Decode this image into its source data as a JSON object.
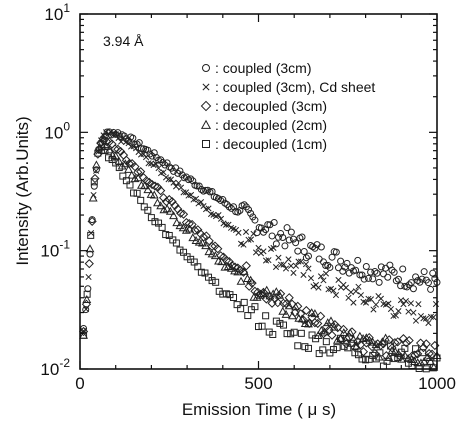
{
  "chart_data": {
    "type": "scatter",
    "title": "",
    "annotation": "3.94 Å",
    "xlabel": "Emission  Time ( μ s)",
    "ylabel": "Intensity (Arb.Units)",
    "xlim": [
      0,
      1000
    ],
    "ylim": [
      0.01,
      10
    ],
    "y_scale": "log",
    "x_ticks": [
      0,
      500,
      1000
    ],
    "x_tick_labels": [
      "0",
      "500",
      "1000"
    ],
    "y_ticks": [
      0.01,
      0.1,
      1,
      10
    ],
    "y_tick_labels": [
      {
        "base": "10",
        "exp": "-2"
      },
      {
        "base": "10",
        "exp": "-1"
      },
      {
        "base": "10",
        "exp": "0"
      },
      {
        "base": "10",
        "exp": "1"
      }
    ],
    "grid": false,
    "legend_position": "top-right",
    "series": [
      {
        "name": ": coupled (3cm)",
        "marker": "circle",
        "decay_ref": "coupled-3cm",
        "points": [
          [
            10,
            0.022
          ],
          [
            20,
            0.04
          ],
          [
            30,
            0.12
          ],
          [
            40,
            0.35
          ],
          [
            50,
            0.65
          ],
          [
            60,
            0.85
          ],
          [
            70,
            0.95
          ],
          [
            80,
            0.99
          ],
          [
            90,
            1.0
          ],
          [
            100,
            0.99
          ],
          [
            125,
            0.93
          ],
          [
            150,
            0.84
          ],
          [
            200,
            0.66
          ],
          [
            250,
            0.52
          ],
          [
            300,
            0.41
          ],
          [
            350,
            0.33
          ],
          [
            400,
            0.26
          ],
          [
            450,
            0.21
          ],
          [
            500,
            0.17
          ],
          [
            550,
            0.14
          ],
          [
            600,
            0.12
          ],
          [
            650,
            0.1
          ],
          [
            700,
            0.088
          ],
          [
            750,
            0.078
          ],
          [
            800,
            0.07
          ],
          [
            850,
            0.065
          ],
          [
            900,
            0.06
          ],
          [
            950,
            0.057
          ],
          [
            1000,
            0.054
          ]
        ]
      },
      {
        "name": ": coupled (3cm), Cd sheet",
        "marker": "cross",
        "decay_ref": "coupled-cd",
        "points": [
          [
            10,
            0.02
          ],
          [
            20,
            0.038
          ],
          [
            30,
            0.12
          ],
          [
            40,
            0.35
          ],
          [
            50,
            0.65
          ],
          [
            60,
            0.86
          ],
          [
            70,
            0.95
          ],
          [
            80,
            0.97
          ],
          [
            100,
            0.93
          ],
          [
            125,
            0.84
          ],
          [
            150,
            0.74
          ],
          [
            200,
            0.55
          ],
          [
            250,
            0.41
          ],
          [
            300,
            0.31
          ],
          [
            350,
            0.23
          ],
          [
            400,
            0.18
          ],
          [
            450,
            0.14
          ],
          [
            500,
            0.11
          ],
          [
            550,
            0.088
          ],
          [
            600,
            0.072
          ],
          [
            650,
            0.06
          ],
          [
            700,
            0.051
          ],
          [
            750,
            0.044
          ],
          [
            800,
            0.039
          ],
          [
            850,
            0.035
          ],
          [
            900,
            0.032
          ],
          [
            950,
            0.03
          ],
          [
            1000,
            0.029
          ]
        ]
      },
      {
        "name": ": decoupled (3cm)",
        "marker": "diamond",
        "decay_ref": "decoupled-3cm",
        "points": [
          [
            10,
            0.02
          ],
          [
            20,
            0.04
          ],
          [
            30,
            0.12
          ],
          [
            40,
            0.36
          ],
          [
            50,
            0.68
          ],
          [
            60,
            0.85
          ],
          [
            70,
            0.88
          ],
          [
            80,
            0.84
          ],
          [
            100,
            0.74
          ],
          [
            125,
            0.63
          ],
          [
            150,
            0.53
          ],
          [
            200,
            0.37
          ],
          [
            250,
            0.26
          ],
          [
            300,
            0.18
          ],
          [
            350,
            0.13
          ],
          [
            400,
            0.092
          ],
          [
            450,
            0.068
          ],
          [
            500,
            0.051
          ],
          [
            550,
            0.04
          ],
          [
            600,
            0.032
          ],
          [
            650,
            0.026
          ],
          [
            700,
            0.022
          ],
          [
            750,
            0.019
          ],
          [
            800,
            0.017
          ],
          [
            850,
            0.016
          ],
          [
            900,
            0.015
          ],
          [
            950,
            0.014
          ],
          [
            1000,
            0.014
          ]
        ]
      },
      {
        "name": ": decoupled (2cm)",
        "marker": "triangle",
        "decay_ref": "decoupled-2cm",
        "points": [
          [
            10,
            0.02
          ],
          [
            20,
            0.04
          ],
          [
            30,
            0.13
          ],
          [
            40,
            0.38
          ],
          [
            50,
            0.68
          ],
          [
            60,
            0.8
          ],
          [
            70,
            0.78
          ],
          [
            80,
            0.73
          ],
          [
            100,
            0.63
          ],
          [
            125,
            0.52
          ],
          [
            150,
            0.43
          ],
          [
            200,
            0.3
          ],
          [
            250,
            0.21
          ],
          [
            300,
            0.15
          ],
          [
            350,
            0.11
          ],
          [
            400,
            0.079
          ],
          [
            450,
            0.06
          ],
          [
            500,
            0.046
          ],
          [
            550,
            0.037
          ],
          [
            600,
            0.03
          ],
          [
            650,
            0.025
          ],
          [
            700,
            0.021
          ],
          [
            750,
            0.018
          ],
          [
            800,
            0.016
          ],
          [
            850,
            0.015
          ],
          [
            900,
            0.014
          ],
          [
            950,
            0.013
          ],
          [
            1000,
            0.012
          ]
        ]
      },
      {
        "name": ": decoupled (1cm)",
        "marker": "square",
        "decay_ref": "decoupled-1cm",
        "points": [
          [
            10,
            0.02
          ],
          [
            20,
            0.045
          ],
          [
            30,
            0.14
          ],
          [
            40,
            0.4
          ],
          [
            50,
            0.66
          ],
          [
            60,
            0.72
          ],
          [
            70,
            0.7
          ],
          [
            80,
            0.64
          ],
          [
            100,
            0.53
          ],
          [
            125,
            0.41
          ],
          [
            150,
            0.32
          ],
          [
            200,
            0.2
          ],
          [
            250,
            0.13
          ],
          [
            300,
            0.088
          ],
          [
            350,
            0.062
          ],
          [
            400,
            0.045
          ],
          [
            450,
            0.034
          ],
          [
            500,
            0.027
          ],
          [
            550,
            0.022
          ],
          [
            600,
            0.019
          ],
          [
            650,
            0.017
          ],
          [
            700,
            0.016
          ],
          [
            750,
            0.015
          ],
          [
            800,
            0.014
          ],
          [
            850,
            0.013
          ],
          [
            900,
            0.013
          ],
          [
            950,
            0.012
          ],
          [
            1000,
            0.012
          ]
        ]
      }
    ]
  }
}
